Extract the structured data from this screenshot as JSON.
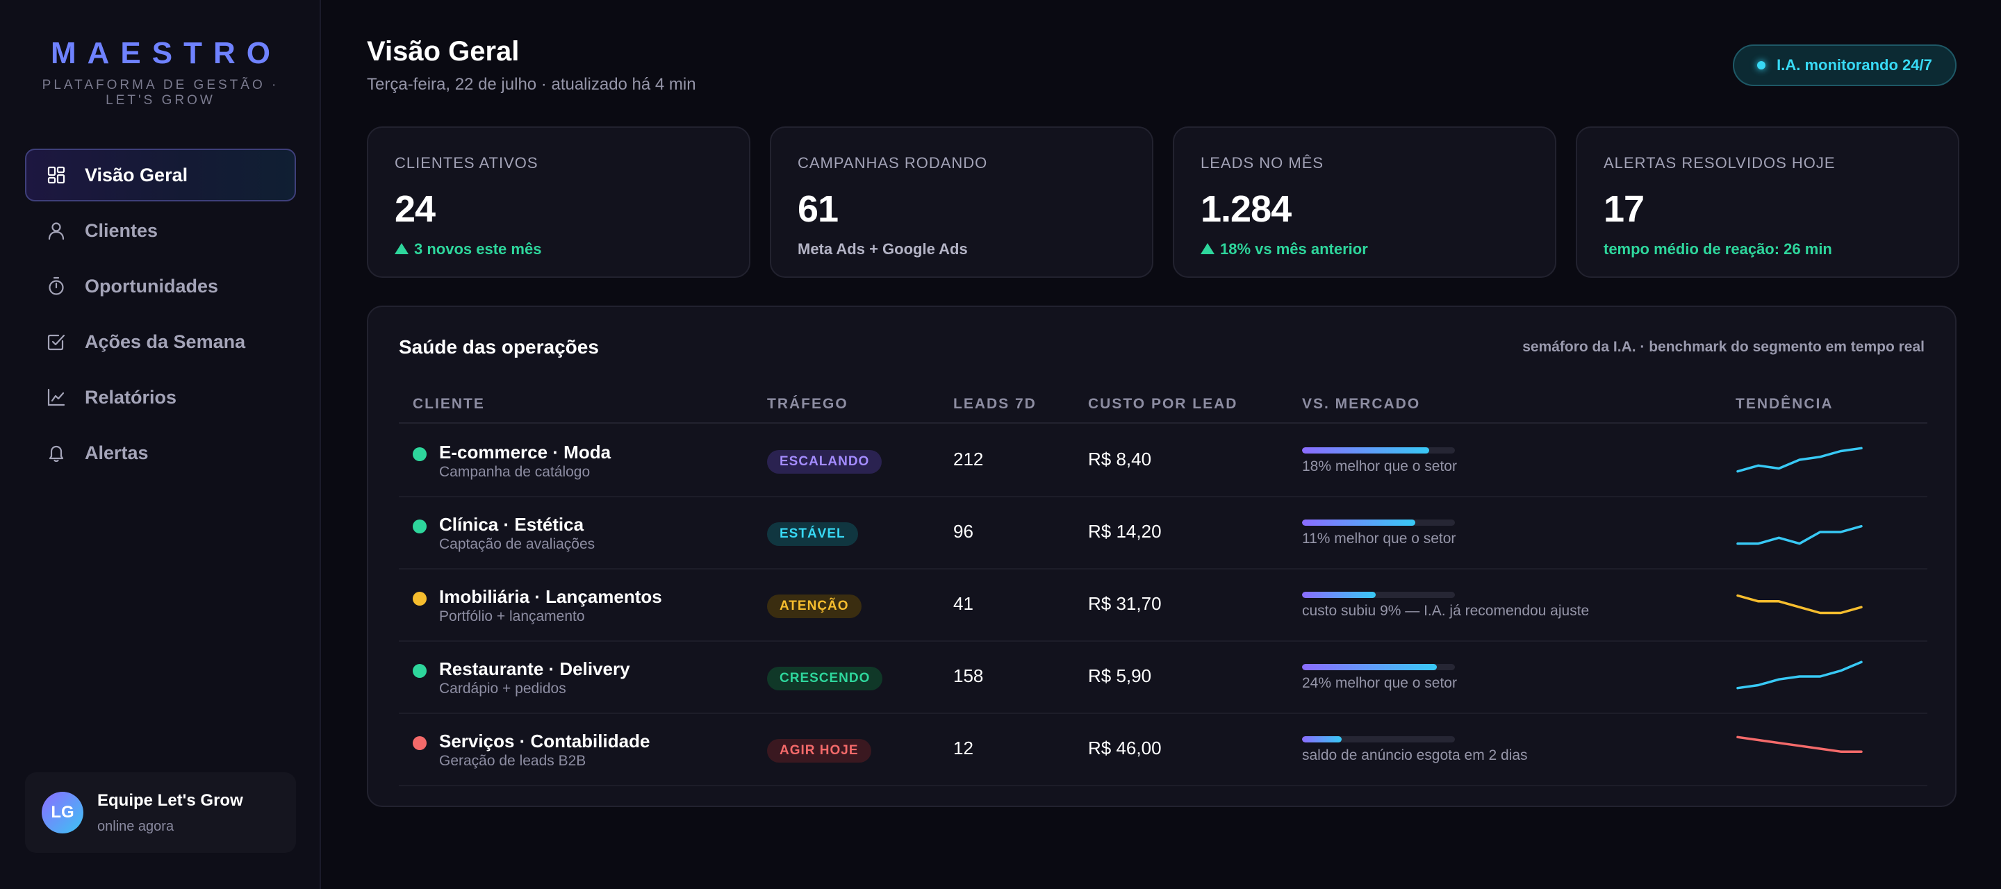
{
  "brand": {
    "name": "MAESTRO",
    "subtitle": "PLATAFORMA DE GESTÃO · LET'S GROW"
  },
  "nav": [
    {
      "label": "Visão Geral",
      "icon": "dashboard-icon",
      "active": true
    },
    {
      "label": "Clientes",
      "icon": "user-icon",
      "active": false
    },
    {
      "label": "Oportunidades",
      "icon": "timer-icon",
      "active": false
    },
    {
      "label": "Ações da Semana",
      "icon": "checkbox-icon",
      "active": false
    },
    {
      "label": "Relatórios",
      "icon": "chart-icon",
      "active": false
    },
    {
      "label": "Alertas",
      "icon": "bell-icon",
      "active": false
    }
  ],
  "user": {
    "initials": "LG",
    "name": "Equipe Let's Grow",
    "status": "online agora"
  },
  "header": {
    "title": "Visão Geral",
    "subtitle": "Terça-feira, 22 de julho · atualizado há 4 min",
    "ai_badge": "I.A. monitorando 24/7"
  },
  "stats": [
    {
      "label": "CLIENTES ATIVOS",
      "value": "24",
      "note": "3 novos este mês",
      "trend_up": true
    },
    {
      "label": "CAMPANHAS RODANDO",
      "value": "61",
      "note": "Meta Ads + Google Ads",
      "trend_up": false
    },
    {
      "label": "LEADS NO MÊS",
      "value": "1.284",
      "note": "18% vs mês anterior",
      "trend_up": true
    },
    {
      "label": "ALERTAS RESOLVIDOS HOJE",
      "value": "17",
      "note": "tempo médio de reação: 26 min",
      "trend_up": false,
      "note_green": true
    }
  ],
  "panel": {
    "title": "Saúde das operações",
    "meta": "semáforo da I.A. · benchmark do segmento em tempo real",
    "columns": [
      "CLIENTE",
      "TRÁFEGO",
      "LEADS 7D",
      "CUSTO POR LEAD",
      "VS. MERCADO",
      "TENDÊNCIA"
    ],
    "rows": [
      {
        "client": "E-commerce · Moda",
        "sub": "Campanha de catálogo",
        "status_color": "#2ed69c",
        "traffic": "ESCALANDO",
        "pill_fg": "#a48cff",
        "pill_bg": "#2a2250",
        "leads": "212",
        "cpl": "R$ 8,40",
        "market": "18% melhor que o setor",
        "market_level": 0.83,
        "trend": [
          2,
          4,
          3,
          6,
          7,
          9,
          10
        ],
        "trend_color": "#38c9f5"
      },
      {
        "client": "Clínica · Estética",
        "sub": "Captação de avaliações",
        "status_color": "#2ed69c",
        "traffic": "ESTÁVEL",
        "pill_fg": "#38d9f5",
        "pill_bg": "#103640",
        "leads": "96",
        "cpl": "R$ 14,20",
        "market": "11% melhor que o setor",
        "market_level": 0.74,
        "trend": [
          2,
          2,
          4,
          2,
          6,
          6,
          8
        ],
        "trend_color": "#38c9f5"
      },
      {
        "client": "Imobiliária · Lançamentos",
        "sub": "Portfólio + lançamento",
        "status_color": "#f6bd2e",
        "traffic": "ATENÇÃO",
        "pill_fg": "#f6bd2e",
        "pill_bg": "#3a2d10",
        "leads": "41",
        "cpl": "R$ 31,70",
        "market": "custo subiu 9% — I.A. já recomendou ajuste",
        "market_level": 0.48,
        "trend": [
          9,
          7,
          7,
          5,
          3,
          3,
          5
        ],
        "trend_color": "#f6bd2e"
      },
      {
        "client": "Restaurante · Delivery",
        "sub": "Cardápio + pedidos",
        "status_color": "#2ed69c",
        "traffic": "CRESCENDO",
        "pill_fg": "#2ed69c",
        "pill_bg": "#103828",
        "leads": "158",
        "cpl": "R$ 5,90",
        "market": "24% melhor que o setor",
        "market_level": 0.88,
        "trend": [
          2,
          3,
          5,
          6,
          6,
          8,
          11
        ],
        "trend_color": "#38c9f5"
      },
      {
        "client": "Serviços · Contabilidade",
        "sub": "Geração de leads B2B",
        "status_color": "#f46a6a",
        "traffic": "AGIR HOJE",
        "pill_fg": "#f46a6a",
        "pill_bg": "#3a1820",
        "leads": "12",
        "cpl": "R$ 46,00",
        "market": "saldo de anúncio esgota em 2 dias",
        "market_level": 0.26,
        "trend": [
          10,
          9,
          8,
          7,
          6,
          5,
          5
        ],
        "trend_color": "#f46a6a"
      }
    ]
  }
}
